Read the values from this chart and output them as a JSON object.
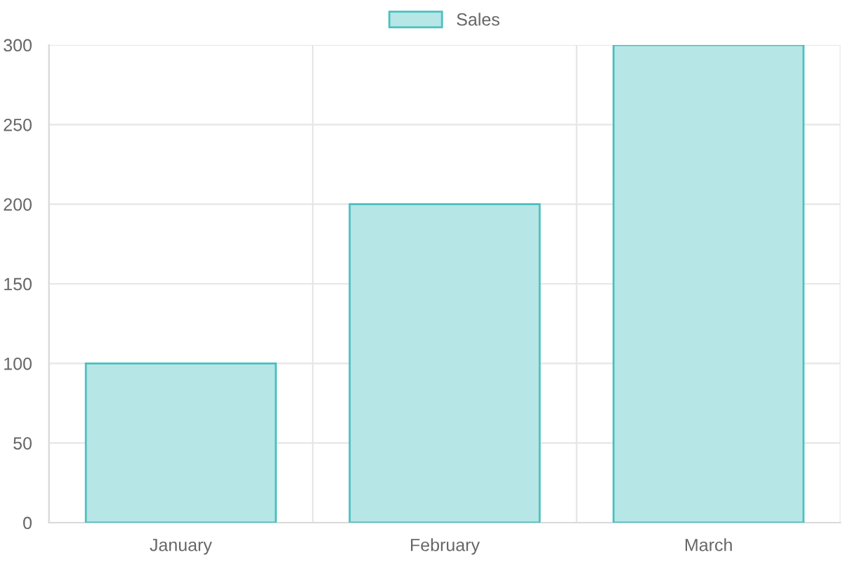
{
  "chart_data": {
    "type": "bar",
    "categories": [
      "January",
      "February",
      "March"
    ],
    "series": [
      {
        "name": "Sales",
        "color": "#b7e6e6",
        "values": [
          100,
          200,
          300
        ]
      }
    ],
    "ylim": [
      0,
      300
    ],
    "yticks": [
      0,
      50,
      100,
      150,
      200,
      250,
      300
    ],
    "grid": true,
    "legend": "top"
  }
}
